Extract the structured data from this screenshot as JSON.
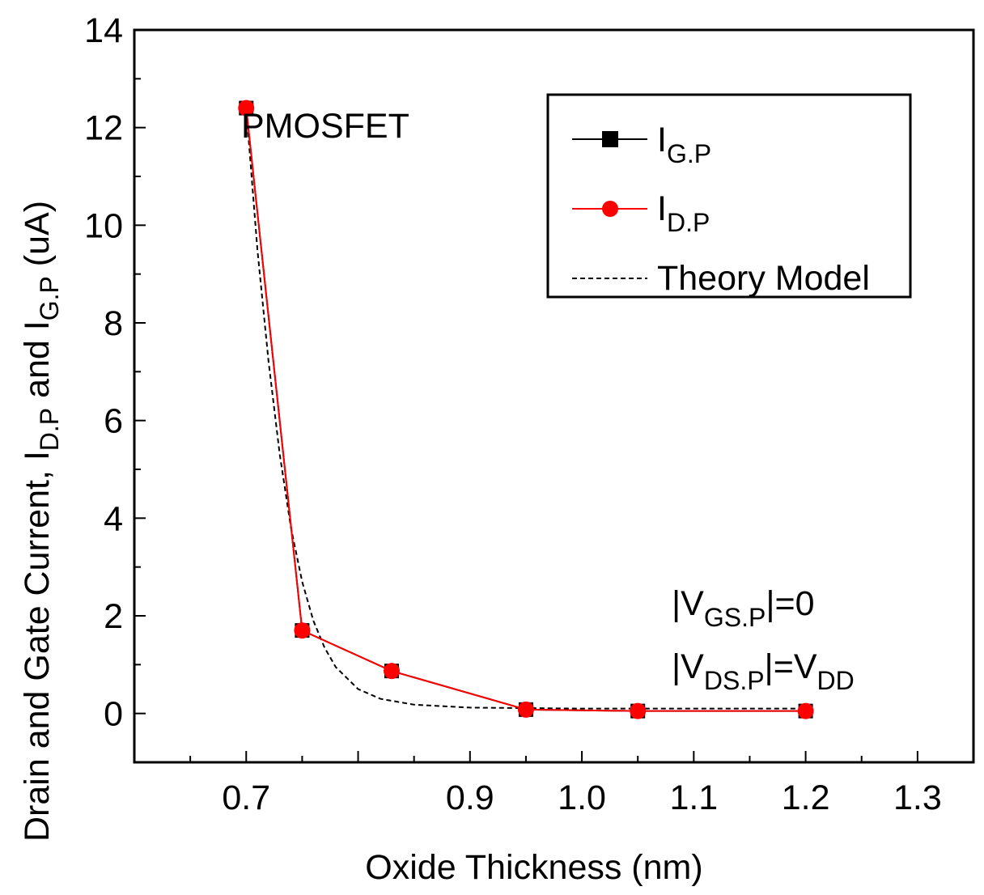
{
  "chart_data": {
    "type": "line",
    "title": "",
    "xlabel": "Oxide Thickness  (nm)",
    "ylabel": {
      "prefix": "Drain and Gate Current, I",
      "sub1": "D.P",
      "mid": " and I",
      "sub2": "G.P",
      "suffix": "   (uA)"
    },
    "xlim": [
      0.6,
      1.35
    ],
    "ylim": [
      -1,
      14
    ],
    "x_ticks": [
      0.7,
      0.8,
      0.9,
      1.0,
      1.1,
      1.2,
      1.3
    ],
    "x_tick_labels": [
      "0.7",
      "",
      "0.9",
      "1.0",
      "1.1",
      "1.2",
      "1.3"
    ],
    "y_ticks": [
      0,
      2,
      4,
      6,
      8,
      10,
      12,
      14
    ],
    "y_tick_labels": [
      "0",
      "2",
      "4",
      "6",
      "8",
      "10",
      "12",
      "14"
    ],
    "series": [
      {
        "name": "I_G.P",
        "label_main": "I",
        "label_sub": "G.P",
        "color": "#000000",
        "marker": "square",
        "x": [
          0.7,
          0.75,
          0.83,
          0.95,
          1.05,
          1.2
        ],
        "y": [
          12.4,
          1.7,
          0.87,
          0.08,
          0.05,
          0.05
        ]
      },
      {
        "name": "I_D.P",
        "label_main": "I",
        "label_sub": "D.P",
        "color": "#ff0000",
        "marker": "circle",
        "x": [
          0.7,
          0.75,
          0.83,
          0.95,
          1.05,
          1.2
        ],
        "y": [
          12.4,
          1.7,
          0.87,
          0.08,
          0.05,
          0.05
        ]
      },
      {
        "name": "Theory Model",
        "label_main": "Theory Model",
        "color": "#000000",
        "style": "dashed",
        "x": [
          0.7,
          0.71,
          0.72,
          0.73,
          0.74,
          0.75,
          0.76,
          0.77,
          0.78,
          0.8,
          0.82,
          0.85,
          0.9,
          0.95,
          1.0,
          1.1,
          1.2
        ],
        "y": [
          12.4,
          9.5,
          7.2,
          5.3,
          3.8,
          2.7,
          1.9,
          1.35,
          0.95,
          0.5,
          0.3,
          0.18,
          0.12,
          0.11,
          0.1,
          0.1,
          0.1
        ]
      }
    ],
    "legend_position": "top-right",
    "annotations": {
      "device": "PMOSFET",
      "vgs": {
        "pre": "|V",
        "sub": "GS.P",
        "post": "|=0"
      },
      "vds": {
        "pre": "|V",
        "sub": "DS.P",
        "post": "|=V",
        "sub2": "DD"
      }
    }
  }
}
